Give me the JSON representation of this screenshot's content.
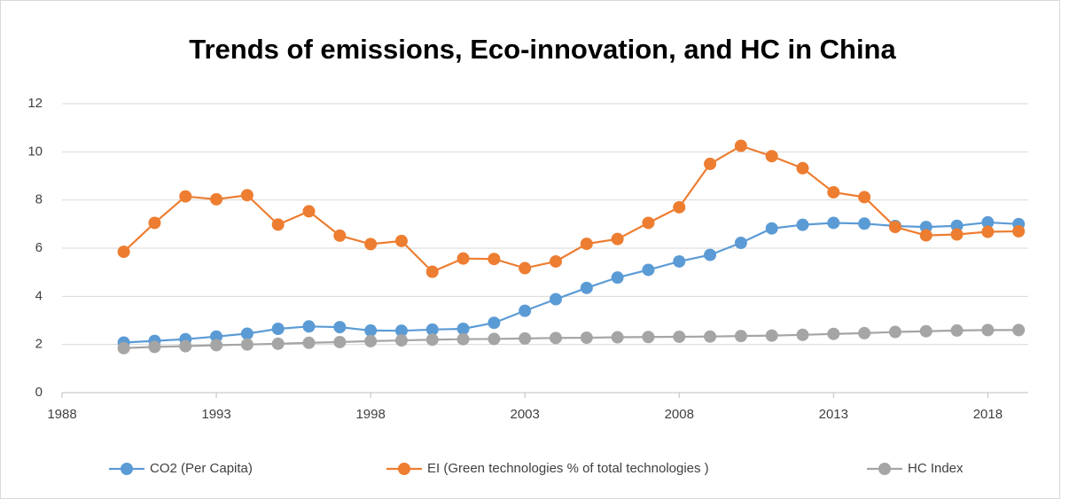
{
  "chart_data": {
    "type": "line",
    "title": "Trends of emissions, Eco-innovation, and HC in China",
    "x": [
      1990,
      1991,
      1992,
      1993,
      1994,
      1995,
      1996,
      1997,
      1998,
      1999,
      2000,
      2001,
      2002,
      2003,
      2004,
      2005,
      2006,
      2007,
      2008,
      2009,
      2010,
      2011,
      2012,
      2013,
      2014,
      2015,
      2016,
      2017,
      2018,
      2019
    ],
    "series": [
      {
        "name": "CO2 (Per Capita)",
        "color": "#5b9bd5",
        "values": [
          2.08,
          2.15,
          2.22,
          2.33,
          2.45,
          2.65,
          2.75,
          2.72,
          2.58,
          2.57,
          2.62,
          2.65,
          2.9,
          3.4,
          3.88,
          4.35,
          4.78,
          5.1,
          5.45,
          5.72,
          6.22,
          6.82,
          6.97,
          7.05,
          7.02,
          6.92,
          6.88,
          6.93,
          7.07,
          7.0
        ]
      },
      {
        "name": "EI (Green technologies % of total technologies )",
        "color": "#ed7d31",
        "values": [
          5.85,
          7.05,
          8.15,
          8.03,
          8.2,
          6.98,
          7.53,
          6.52,
          6.17,
          6.3,
          5.02,
          5.57,
          5.55,
          5.17,
          5.45,
          6.18,
          6.38,
          7.05,
          7.7,
          9.5,
          10.25,
          9.82,
          9.32,
          8.32,
          8.12,
          6.88,
          6.53,
          6.57,
          6.68,
          6.7
        ]
      },
      {
        "name": "HC Index",
        "color": "#a5a5a5",
        "values": [
          1.85,
          1.9,
          1.93,
          1.97,
          2.0,
          2.03,
          2.07,
          2.1,
          2.14,
          2.17,
          2.2,
          2.22,
          2.23,
          2.25,
          2.27,
          2.28,
          2.3,
          2.31,
          2.32,
          2.33,
          2.35,
          2.37,
          2.4,
          2.44,
          2.47,
          2.52,
          2.55,
          2.58,
          2.6,
          2.6
        ]
      }
    ],
    "xlim": [
      1988,
      2020
    ],
    "xticks": [
      1988,
      1993,
      1998,
      2003,
      2008,
      2013,
      2018
    ],
    "ylim": [
      0,
      12
    ],
    "yticks": [
      0,
      2,
      4,
      6,
      8,
      10,
      12
    ],
    "grid": true,
    "legend": "bottom"
  }
}
